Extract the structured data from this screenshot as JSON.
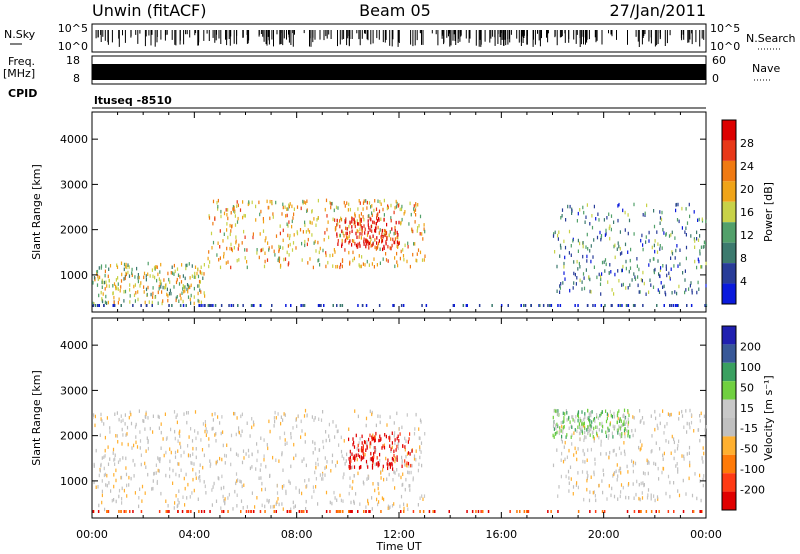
{
  "header": {
    "station": "Unwin (fitACF)",
    "beam": "Beam 05",
    "date": "27/Jan/2011"
  },
  "status_panels": {
    "nsky_label": "N.Sky",
    "nsky_ticks": [
      "10^5",
      "10^0"
    ],
    "nsearch_label": "N.Search",
    "nsearch_ticks": [
      "10^5",
      "10^0"
    ],
    "freq_label": "Freq.",
    "freq_unit": "[MHz]",
    "freq_ticks": [
      "18",
      "8"
    ],
    "nave_label": "Nave",
    "nave_ticks": [
      "60",
      "0"
    ],
    "cpid_label": "CPID",
    "cpid_value": "ltuseq -8510"
  },
  "colors": {
    "power_scale": [
      "#0a1adc",
      "#283c98",
      "#3c7a6e",
      "#52a06a",
      "#c8d248",
      "#f0a418",
      "#f07a12",
      "#e83818",
      "#dc0000"
    ],
    "velocity_scale": [
      "#e00000",
      "#ff3a14",
      "#ff7a08",
      "#ffb030",
      "#c0c0c0",
      "#c8c8c8",
      "#70d040",
      "#3aa060",
      "#385898",
      "#2020b0"
    ]
  },
  "chart_data": [
    {
      "type": "heatmap",
      "title": "",
      "xlabel": "Time UT",
      "ylabel": "Slant Range [km]",
      "colorbar_label": "Power [dB]",
      "colorbar_ticks": [
        "28",
        "24",
        "20",
        "16",
        "12",
        "8",
        "4"
      ],
      "x_ticks": [
        "00:00",
        "04:00",
        "08:00",
        "12:00",
        "16:00",
        "20:00",
        "00:00"
      ],
      "y_ticks": [
        "1000",
        "2000",
        "3000",
        "4000"
      ],
      "xlim_hours": [
        0,
        24
      ],
      "ylim_km": [
        180,
        4600
      ],
      "scatter_regions": [
        {
          "t_start": 0.0,
          "t_end": 4.5,
          "r_min": 400,
          "r_max": 1300,
          "level": 4
        },
        {
          "t_start": 4.5,
          "t_end": 13.0,
          "r_min": 1200,
          "r_max": 2700,
          "level": 5
        },
        {
          "t_start": 9.5,
          "t_end": 12.0,
          "r_min": 1600,
          "r_max": 2300,
          "level": 8
        },
        {
          "t_start": 18.0,
          "t_end": 24.0,
          "r_min": 600,
          "r_max": 2600,
          "level": 2
        }
      ]
    },
    {
      "type": "heatmap",
      "title": "",
      "xlabel": "Time UT",
      "ylabel": "Slant Range [km]",
      "colorbar_label": "Velocity [m s⁻¹]",
      "colorbar_ticks": [
        "200",
        "100",
        "50",
        "15",
        "-15",
        "-50",
        "-100",
        "-200"
      ],
      "x_ticks": [
        "00:00",
        "04:00",
        "08:00",
        "12:00",
        "16:00",
        "20:00",
        "00:00"
      ],
      "y_ticks": [
        "1000",
        "2000",
        "3000",
        "4000"
      ],
      "xlim_hours": [
        0,
        24
      ],
      "ylim_km": [
        180,
        4600
      ],
      "scatter_regions": [
        {
          "t_start": 0.0,
          "t_end": 13.0,
          "r_min": 400,
          "r_max": 2600,
          "velocity": 0
        },
        {
          "t_start": 10.0,
          "t_end": 12.5,
          "r_min": 1300,
          "r_max": 2100,
          "velocity": -200
        },
        {
          "t_start": 18.0,
          "t_end": 24.0,
          "r_min": 600,
          "r_max": 2600,
          "velocity": 0
        },
        {
          "t_start": 18.0,
          "t_end": 21.0,
          "r_min": 2000,
          "r_max": 2600,
          "velocity": 50
        }
      ]
    }
  ]
}
